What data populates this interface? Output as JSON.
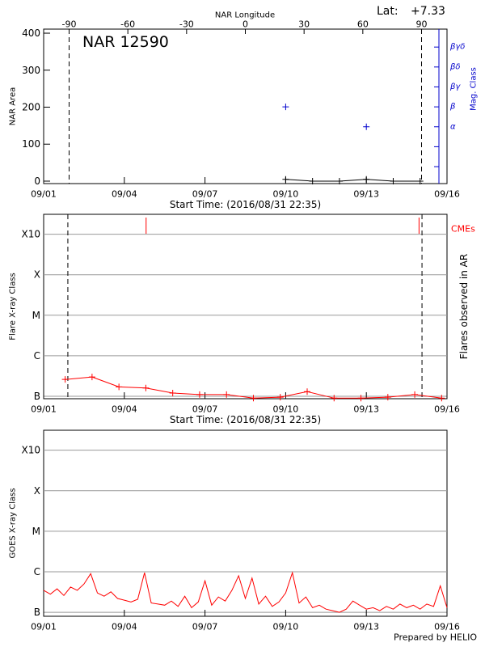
{
  "chart_data": [
    {
      "type": "scatter",
      "title": "NAR 12590",
      "lat_label": "Lat:",
      "lat_value": "+7.33",
      "x2label": "NAR Longitude",
      "xlabel": "Start Time: (2016/08/31 22:35)",
      "ylabel": "NAR Area",
      "y2label": "Mag. Class",
      "xlim": [
        1,
        16
      ],
      "xticks": [
        {
          "value": 1,
          "label": "09/01"
        },
        {
          "value": 4,
          "label": "09/04"
        },
        {
          "value": 7,
          "label": "09/07"
        },
        {
          "value": 10,
          "label": "09/10"
        },
        {
          "value": 13,
          "label": "09/13"
        },
        {
          "value": 16,
          "label": "09/16"
        }
      ],
      "x2lim": [
        -103,
        103
      ],
      "x2ticks": [
        -90,
        -60,
        -30,
        0,
        30,
        60,
        90
      ],
      "limb_longitudes": [
        -90,
        90
      ],
      "ylim": [
        -6.6,
        411
      ],
      "yticks": [
        0,
        100,
        200,
        300,
        400
      ],
      "y2lim": [
        0.15,
        7.9
      ],
      "y2ticks": [
        {
          "value": 3,
          "label": "α"
        },
        {
          "value": 4,
          "label": "β"
        },
        {
          "value": 5,
          "label": "βγ"
        },
        {
          "value": 6,
          "label": "βδ"
        },
        {
          "value": 7,
          "label": "βγδ"
        }
      ],
      "y2minor_ticks": [
        1,
        2
      ],
      "y2color": "#0000cc",
      "series": [
        {
          "color": "#000000",
          "line": true,
          "marker": "+",
          "x": [
            10,
            11,
            12,
            13,
            14,
            15
          ],
          "values": [
            5,
            0,
            0,
            5,
            0,
            0
          ]
        },
        {
          "color": "#0000cc",
          "marker": "+",
          "axis": "y2",
          "x": [
            10,
            13
          ],
          "values": [
            4,
            3
          ]
        }
      ]
    },
    {
      "type": "line",
      "xlabel": "Start Time: (2016/08/31 22:35)",
      "ylabel": "Flare X-ray Class",
      "y2label": "Flares observed in AR",
      "xlim": [
        1,
        16
      ],
      "xticks": [
        {
          "value": 1,
          "label": "09/01"
        },
        {
          "value": 4,
          "label": "09/04"
        },
        {
          "value": 7,
          "label": "09/07"
        },
        {
          "value": 10,
          "label": "09/10"
        },
        {
          "value": 13,
          "label": "09/13"
        },
        {
          "value": 16,
          "label": "09/16"
        }
      ],
      "log": true,
      "ylim": [
        0.87,
        31000
      ],
      "yticks": [
        {
          "value": 1,
          "label": "B"
        },
        {
          "value": 10,
          "label": "C"
        },
        {
          "value": 100,
          "label": "M"
        },
        {
          "value": 1000,
          "label": "X"
        },
        {
          "value": 10000,
          "label": "X10"
        }
      ],
      "grid": true,
      "vlines": [
        1.9,
        15.07
      ],
      "cme_label": "CMEs",
      "cme_times": [
        4.81,
        14.96
      ],
      "cme_color": "#ff0000",
      "series": [
        {
          "color": "#ff0000",
          "line": true,
          "marker": "+",
          "x": [
            1.8,
            2.8,
            3.8,
            4.8,
            5.8,
            6.8,
            7.8,
            8.8,
            9.8,
            10.8,
            11.8,
            12.8,
            13.8,
            14.8,
            15.8
          ],
          "values": [
            2.6,
            3.0,
            1.7,
            1.6,
            1.2,
            1.1,
            1.1,
            0.9,
            0.95,
            1.3,
            0.9,
            0.9,
            0.95,
            1.1,
            0.9
          ]
        }
      ]
    },
    {
      "type": "line",
      "ylabel": "GOES X-ray Class",
      "xlim": [
        1,
        16
      ],
      "xticks": [
        {
          "value": 1,
          "label": "09/01"
        },
        {
          "value": 4,
          "label": "09/04"
        },
        {
          "value": 7,
          "label": "09/07"
        },
        {
          "value": 10,
          "label": "09/10"
        },
        {
          "value": 13,
          "label": "09/13"
        },
        {
          "value": 16,
          "label": "09/16"
        }
      ],
      "log": true,
      "ylim": [
        0.8,
        31000
      ],
      "yticks": [
        {
          "value": 1,
          "label": "B"
        },
        {
          "value": 10,
          "label": "C"
        },
        {
          "value": 100,
          "label": "M"
        },
        {
          "value": 1000,
          "label": "X"
        },
        {
          "value": 10000,
          "label": "X10"
        }
      ],
      "grid": true,
      "series": [
        {
          "color": "#ff0000",
          "line": true,
          "x": [
            1,
            1.25,
            1.5,
            1.75,
            2,
            2.25,
            2.5,
            2.75,
            3,
            3.25,
            3.5,
            3.75,
            4,
            4.25,
            4.5,
            4.75,
            5,
            5.25,
            5.5,
            5.75,
            6,
            6.25,
            6.5,
            6.75,
            7,
            7.25,
            7.5,
            7.75,
            8,
            8.25,
            8.5,
            8.75,
            9,
            9.25,
            9.5,
            9.75,
            10,
            10.25,
            10.5,
            10.75,
            11,
            11.25,
            11.5,
            11.75,
            12,
            12.25,
            12.5,
            12.75,
            13,
            13.25,
            13.5,
            13.75,
            14,
            14.25,
            14.5,
            14.75,
            15,
            15.25,
            15.5,
            15.75,
            16
          ],
          "values": [
            3.5,
            2.8,
            3.8,
            2.6,
            4.2,
            3.5,
            5,
            9,
            3.0,
            2.5,
            3.2,
            2.2,
            2.0,
            1.8,
            2.1,
            9.5,
            1.7,
            1.6,
            1.5,
            1.9,
            1.4,
            2.5,
            1.3,
            1.8,
            6,
            1.5,
            2.4,
            1.9,
            3.5,
            8,
            2.2,
            7,
            1.6,
            2.5,
            1.4,
            1.8,
            3,
            9.5,
            1.7,
            2.4,
            1.3,
            1.5,
            1.2,
            1.1,
            1.0,
            1.2,
            1.9,
            1.5,
            1.2,
            1.3,
            1.1,
            1.4,
            1.2,
            1.6,
            1.3,
            1.5,
            1.2,
            1.6,
            1.4,
            4.5,
            1.3
          ]
        }
      ]
    }
  ],
  "footer": "Prepared by HELIO"
}
